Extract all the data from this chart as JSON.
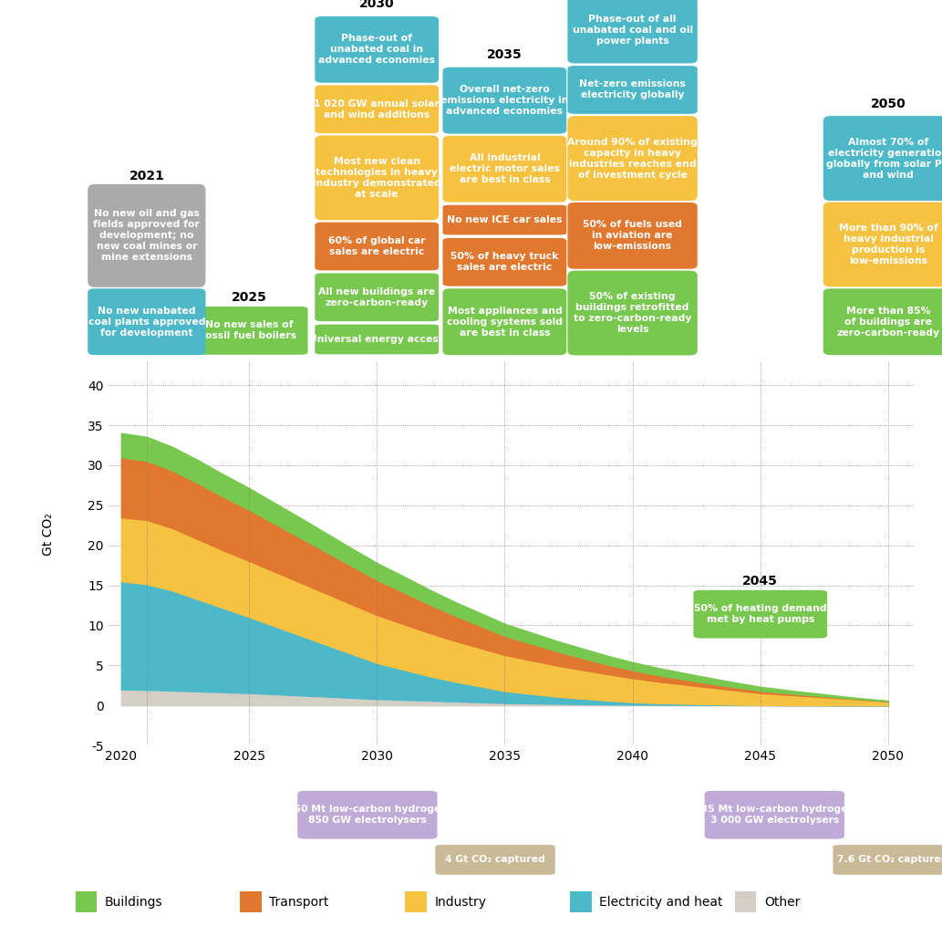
{
  "years": [
    2020,
    2021,
    2022,
    2023,
    2024,
    2025,
    2026,
    2027,
    2028,
    2029,
    2030,
    2031,
    2032,
    2033,
    2034,
    2035,
    2036,
    2037,
    2038,
    2039,
    2040,
    2041,
    2042,
    2043,
    2044,
    2045,
    2046,
    2047,
    2048,
    2049,
    2050
  ],
  "other": [
    2.0,
    1.95,
    1.85,
    1.75,
    1.65,
    1.55,
    1.4,
    1.25,
    1.1,
    0.95,
    0.8,
    0.7,
    0.6,
    0.5,
    0.4,
    0.3,
    0.25,
    0.2,
    0.15,
    0.12,
    0.1,
    0.08,
    0.06,
    0.05,
    0.04,
    0.03,
    0.02,
    0.02,
    0.01,
    0.01,
    0.0
  ],
  "electricity": [
    13.5,
    13.2,
    12.5,
    11.5,
    10.5,
    9.5,
    8.5,
    7.5,
    6.5,
    5.5,
    4.5,
    3.8,
    3.1,
    2.5,
    2.0,
    1.5,
    1.2,
    0.9,
    0.7,
    0.5,
    0.3,
    0.2,
    0.15,
    0.1,
    0.05,
    0.02,
    0.01,
    0.005,
    0.002,
    0.001,
    0.0
  ],
  "industry": [
    8.0,
    8.0,
    7.8,
    7.5,
    7.2,
    7.0,
    6.8,
    6.6,
    6.4,
    6.2,
    6.0,
    5.7,
    5.4,
    5.1,
    4.8,
    4.5,
    4.2,
    3.9,
    3.6,
    3.3,
    3.0,
    2.7,
    2.4,
    2.1,
    1.8,
    1.5,
    1.3,
    1.1,
    0.9,
    0.7,
    0.5
  ],
  "transport": [
    7.5,
    7.4,
    7.2,
    7.0,
    6.7,
    6.4,
    6.0,
    5.6,
    5.2,
    4.8,
    4.4,
    4.0,
    3.6,
    3.2,
    2.8,
    2.4,
    2.1,
    1.8,
    1.5,
    1.2,
    1.0,
    0.8,
    0.65,
    0.5,
    0.38,
    0.28,
    0.2,
    0.14,
    0.1,
    0.06,
    0.03
  ],
  "buildings": [
    3.0,
    3.0,
    2.95,
    2.9,
    2.8,
    2.7,
    2.6,
    2.5,
    2.35,
    2.2,
    2.1,
    2.0,
    1.85,
    1.7,
    1.6,
    1.5,
    1.4,
    1.3,
    1.2,
    1.1,
    1.0,
    0.9,
    0.8,
    0.7,
    0.6,
    0.5,
    0.4,
    0.3,
    0.2,
    0.1,
    0.05
  ],
  "colors": {
    "other": "#d4cfc4",
    "electricity": "#4db8c8",
    "industry": "#f5c242",
    "transport": "#e07830",
    "buildings": "#78c850"
  },
  "legend_items": [
    {
      "label": "Buildings",
      "color": "#78c850"
    },
    {
      "label": "Transport",
      "color": "#e07830"
    },
    {
      "label": "Industry",
      "color": "#f5c242"
    },
    {
      "label": "Electricity and heat",
      "color": "#4db8c8"
    },
    {
      "label": "Other",
      "color": "#d4cfc4"
    }
  ]
}
